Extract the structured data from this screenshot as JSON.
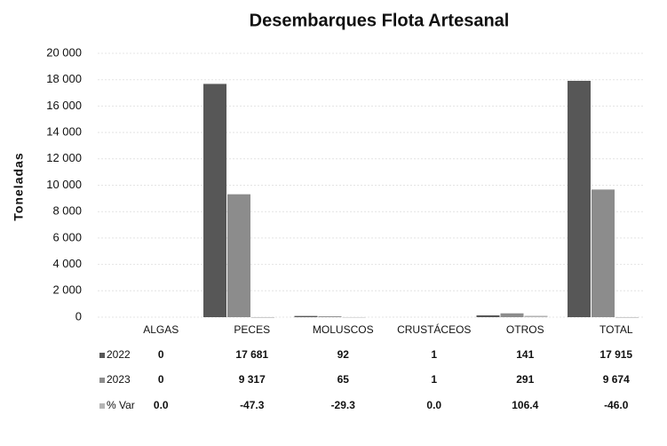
{
  "chart_data": {
    "type": "bar",
    "title": "Desembarques Flota Artesanal",
    "y_label": "Toneladas",
    "categories": [
      "ALGAS",
      "PECES",
      "MOLUSCOS",
      "CRUSTÁCEOS",
      "OTROS",
      "TOTAL"
    ],
    "series": [
      {
        "name": "2022",
        "color": "#575757",
        "values": [
          0,
          17681,
          92,
          1,
          141,
          17915
        ],
        "value_labels": [
          "0",
          "17 681",
          "92",
          "1",
          "141",
          "17 915"
        ]
      },
      {
        "name": "2023",
        "color": "#8c8c8c",
        "values": [
          0,
          9317,
          65,
          1,
          291,
          9674
        ],
        "value_labels": [
          "0",
          "9 317",
          "65",
          "1",
          "291",
          "9 674"
        ]
      },
      {
        "name": "% Var",
        "color": "#b5b5b5",
        "values": [
          0.0,
          -47.3,
          -29.3,
          0.0,
          106.4,
          -46.0
        ],
        "value_labels": [
          "0.0",
          "-47.3",
          "-29.3",
          "0.0",
          "106.4",
          "-46.0"
        ]
      }
    ],
    "ylim": [
      0,
      20000
    ],
    "yticks": [
      0,
      {
        "value": 2000,
        "label": "2 000"
      },
      {
        "value": 4000,
        "label": "4 000"
      },
      {
        "value": 6000,
        "label": "6 000"
      },
      {
        "value": 8000,
        "label": "8 000"
      },
      {
        "value": 10000,
        "label": "10 000"
      },
      {
        "value": 12000,
        "label": "12 000"
      },
      {
        "value": 14000,
        "label": "14 000"
      },
      {
        "value": 16000,
        "label": "16 000"
      },
      {
        "value": 18000,
        "label": "18 000"
      },
      {
        "value": 20000,
        "label": "20 000"
      }
    ],
    "grid": true
  }
}
